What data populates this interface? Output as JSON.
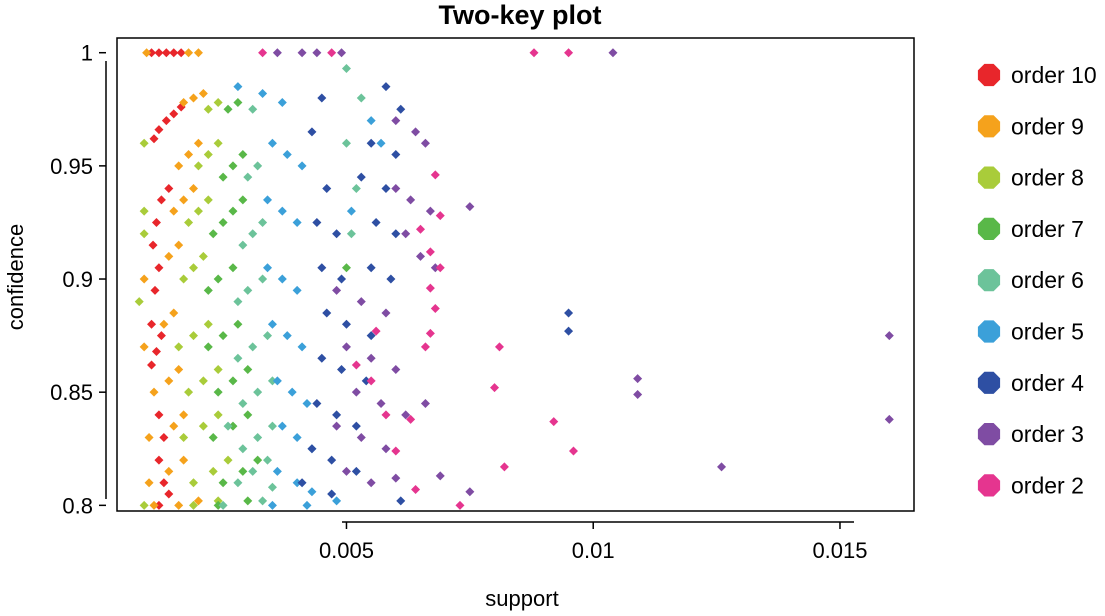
{
  "chart_data": {
    "type": "scatter",
    "title": "Two-key plot",
    "xlabel": "support",
    "ylabel": "confidence",
    "xlim": [
      0.00035,
      0.0165
    ],
    "ylim": [
      0.7975,
      1.0065
    ],
    "x_ticks": [
      {
        "value": 0.005,
        "label": "0.005"
      },
      {
        "value": 0.01,
        "label": "0.01"
      },
      {
        "value": 0.015,
        "label": "0.015"
      }
    ],
    "y_ticks": [
      {
        "value": 0.8,
        "label": "0.8"
      },
      {
        "value": 0.85,
        "label": "0.85"
      },
      {
        "value": 0.9,
        "label": "0.9"
      },
      {
        "value": 0.95,
        "label": "0.95"
      },
      {
        "value": 1.0,
        "label": "1"
      }
    ],
    "legend_position": "right",
    "series": [
      {
        "name": "order 10",
        "color": "#e8262b",
        "order": 10,
        "points": [
          [
            0.00105,
            1.0
          ],
          [
            0.0012,
            1.0
          ],
          [
            0.00135,
            1.0
          ],
          [
            0.0015,
            1.0
          ],
          [
            0.00165,
            1.0
          ],
          [
            0.0011,
            0.962
          ],
          [
            0.0012,
            0.966
          ],
          [
            0.00135,
            0.97
          ],
          [
            0.0015,
            0.973
          ],
          [
            0.00165,
            0.976
          ],
          [
            0.00108,
            0.915
          ],
          [
            0.00115,
            0.925
          ],
          [
            0.00125,
            0.935
          ],
          [
            0.0014,
            0.94
          ],
          [
            0.00105,
            0.88
          ],
          [
            0.00112,
            0.895
          ],
          [
            0.0012,
            0.905
          ],
          [
            0.00105,
            0.862
          ],
          [
            0.00115,
            0.868
          ],
          [
            0.00125,
            0.875
          ],
          [
            0.0012,
            0.84
          ],
          [
            0.0013,
            0.83
          ],
          [
            0.0012,
            0.82
          ],
          [
            0.0013,
            0.81
          ],
          [
            0.0012,
            0.8
          ],
          [
            0.0014,
            0.805
          ]
        ]
      },
      {
        "name": "order 9",
        "color": "#f5a21c",
        "order": 9,
        "points": [
          [
            0.00095,
            1.0
          ],
          [
            0.0018,
            1.0
          ],
          [
            0.002,
            1.0
          ],
          [
            0.0017,
            0.978
          ],
          [
            0.0019,
            0.98
          ],
          [
            0.0021,
            0.982
          ],
          [
            0.0016,
            0.95
          ],
          [
            0.0018,
            0.955
          ],
          [
            0.002,
            0.96
          ],
          [
            0.0015,
            0.93
          ],
          [
            0.0017,
            0.935
          ],
          [
            0.0019,
            0.94
          ],
          [
            0.0009,
            0.9
          ],
          [
            0.0014,
            0.91
          ],
          [
            0.0016,
            0.915
          ],
          [
            0.0009,
            0.87
          ],
          [
            0.0013,
            0.88
          ],
          [
            0.0015,
            0.885
          ],
          [
            0.0011,
            0.85
          ],
          [
            0.0014,
            0.855
          ],
          [
            0.0016,
            0.86
          ],
          [
            0.001,
            0.83
          ],
          [
            0.0015,
            0.835
          ],
          [
            0.0017,
            0.84
          ],
          [
            0.001,
            0.81
          ],
          [
            0.0014,
            0.815
          ],
          [
            0.0017,
            0.82
          ],
          [
            0.0011,
            0.8
          ],
          [
            0.0016,
            0.8
          ],
          [
            0.002,
            0.802
          ]
        ]
      },
      {
        "name": "order 8",
        "color": "#a9cc3a",
        "order": 8,
        "points": [
          [
            0.0009,
            0.96
          ],
          [
            0.0009,
            0.93
          ],
          [
            0.0009,
            0.92
          ],
          [
            0.0022,
            0.975
          ],
          [
            0.0024,
            0.978
          ],
          [
            0.002,
            0.95
          ],
          [
            0.0022,
            0.955
          ],
          [
            0.0024,
            0.96
          ],
          [
            0.0018,
            0.925
          ],
          [
            0.002,
            0.93
          ],
          [
            0.0022,
            0.935
          ],
          [
            0.0008,
            0.89
          ],
          [
            0.0017,
            0.9
          ],
          [
            0.0019,
            0.905
          ],
          [
            0.0021,
            0.91
          ],
          [
            0.0016,
            0.87
          ],
          [
            0.0019,
            0.875
          ],
          [
            0.0022,
            0.88
          ],
          [
            0.0018,
            0.85
          ],
          [
            0.0021,
            0.855
          ],
          [
            0.0024,
            0.86
          ],
          [
            0.0017,
            0.83
          ],
          [
            0.0021,
            0.835
          ],
          [
            0.0024,
            0.84
          ],
          [
            0.0019,
            0.81
          ],
          [
            0.0023,
            0.815
          ],
          [
            0.0026,
            0.82
          ],
          [
            0.0009,
            0.8
          ],
          [
            0.0019,
            0.8
          ],
          [
            0.0024,
            0.802
          ]
        ]
      },
      {
        "name": "order 7",
        "color": "#59b848",
        "order": 7,
        "points": [
          [
            0.0026,
            0.975
          ],
          [
            0.0028,
            0.978
          ],
          [
            0.0025,
            0.945
          ],
          [
            0.0027,
            0.95
          ],
          [
            0.0029,
            0.955
          ],
          [
            0.0023,
            0.92
          ],
          [
            0.0025,
            0.925
          ],
          [
            0.0027,
            0.93
          ],
          [
            0.0029,
            0.935
          ],
          [
            0.0022,
            0.895
          ],
          [
            0.0024,
            0.9
          ],
          [
            0.0027,
            0.905
          ],
          [
            0.0022,
            0.87
          ],
          [
            0.0025,
            0.875
          ],
          [
            0.0028,
            0.88
          ],
          [
            0.0024,
            0.85
          ],
          [
            0.0027,
            0.855
          ],
          [
            0.003,
            0.86
          ],
          [
            0.0023,
            0.83
          ],
          [
            0.0027,
            0.835
          ],
          [
            0.003,
            0.84
          ],
          [
            0.0025,
            0.81
          ],
          [
            0.0029,
            0.815
          ],
          [
            0.0032,
            0.82
          ],
          [
            0.0024,
            0.8
          ],
          [
            0.003,
            0.802
          ],
          [
            0.005,
            0.905
          ]
        ]
      },
      {
        "name": "order 6",
        "color": "#6cc39a",
        "order": 6,
        "points": [
          [
            0.0031,
            0.975
          ],
          [
            0.005,
            0.993
          ],
          [
            0.0053,
            0.98
          ],
          [
            0.003,
            0.945
          ],
          [
            0.0032,
            0.95
          ],
          [
            0.005,
            0.96
          ],
          [
            0.0052,
            0.94
          ],
          [
            0.0029,
            0.915
          ],
          [
            0.0031,
            0.92
          ],
          [
            0.0033,
            0.925
          ],
          [
            0.0051,
            0.92
          ],
          [
            0.0028,
            0.89
          ],
          [
            0.003,
            0.895
          ],
          [
            0.0033,
            0.9
          ],
          [
            0.0028,
            0.865
          ],
          [
            0.0031,
            0.87
          ],
          [
            0.0034,
            0.875
          ],
          [
            0.0029,
            0.845
          ],
          [
            0.0032,
            0.85
          ],
          [
            0.0035,
            0.855
          ],
          [
            0.0026,
            0.835
          ],
          [
            0.0029,
            0.825
          ],
          [
            0.0032,
            0.83
          ],
          [
            0.0035,
            0.835
          ],
          [
            0.0028,
            0.81
          ],
          [
            0.0031,
            0.815
          ],
          [
            0.0034,
            0.82
          ],
          [
            0.0025,
            0.8
          ],
          [
            0.0033,
            0.802
          ],
          [
            0.0035,
            0.808
          ]
        ]
      },
      {
        "name": "order 5",
        "color": "#3ba0d9",
        "order": 5,
        "points": [
          [
            0.0028,
            0.985
          ],
          [
            0.0033,
            0.982
          ],
          [
            0.0037,
            0.978
          ],
          [
            0.0035,
            0.96
          ],
          [
            0.0038,
            0.955
          ],
          [
            0.0041,
            0.95
          ],
          [
            0.0034,
            0.935
          ],
          [
            0.0037,
            0.93
          ],
          [
            0.004,
            0.925
          ],
          [
            0.0051,
            0.93
          ],
          [
            0.0034,
            0.905
          ],
          [
            0.0037,
            0.9
          ],
          [
            0.004,
            0.895
          ],
          [
            0.0035,
            0.88
          ],
          [
            0.0038,
            0.875
          ],
          [
            0.0041,
            0.87
          ],
          [
            0.0036,
            0.855
          ],
          [
            0.0039,
            0.85
          ],
          [
            0.0042,
            0.845
          ],
          [
            0.0037,
            0.835
          ],
          [
            0.004,
            0.83
          ],
          [
            0.0043,
            0.825
          ],
          [
            0.0036,
            0.815
          ],
          [
            0.004,
            0.81
          ],
          [
            0.0043,
            0.806
          ],
          [
            0.0035,
            0.8
          ],
          [
            0.0042,
            0.8
          ],
          [
            0.0048,
            0.802
          ],
          [
            0.0057,
            0.96
          ],
          [
            0.0055,
            0.97
          ]
        ]
      },
      {
        "name": "order 4",
        "color": "#2e4fa3",
        "order": 4,
        "points": [
          [
            0.0045,
            0.98
          ],
          [
            0.0058,
            0.985
          ],
          [
            0.0061,
            0.975
          ],
          [
            0.0043,
            0.965
          ],
          [
            0.0055,
            0.96
          ],
          [
            0.006,
            0.955
          ],
          [
            0.0046,
            0.94
          ],
          [
            0.0053,
            0.945
          ],
          [
            0.0058,
            0.94
          ],
          [
            0.0044,
            0.925
          ],
          [
            0.0048,
            0.92
          ],
          [
            0.0056,
            0.925
          ],
          [
            0.006,
            0.92
          ],
          [
            0.0045,
            0.905
          ],
          [
            0.0049,
            0.9
          ],
          [
            0.0055,
            0.905
          ],
          [
            0.0059,
            0.9
          ],
          [
            0.0046,
            0.885
          ],
          [
            0.005,
            0.88
          ],
          [
            0.0055,
            0.875
          ],
          [
            0.0045,
            0.865
          ],
          [
            0.0049,
            0.86
          ],
          [
            0.0054,
            0.855
          ],
          [
            0.0044,
            0.845
          ],
          [
            0.0048,
            0.84
          ],
          [
            0.0052,
            0.835
          ],
          [
            0.0043,
            0.825
          ],
          [
            0.0047,
            0.82
          ],
          [
            0.0052,
            0.815
          ],
          [
            0.0041,
            0.81
          ],
          [
            0.0047,
            0.805
          ],
          [
            0.0061,
            0.802
          ],
          [
            0.0095,
            0.885
          ],
          [
            0.0095,
            0.877
          ]
        ]
      },
      {
        "name": "order 3",
        "color": "#7f4ca3",
        "order": 3,
        "points": [
          [
            0.0036,
            1.0
          ],
          [
            0.0041,
            1.0
          ],
          [
            0.0044,
            1.0
          ],
          [
            0.0049,
            1.0
          ],
          [
            0.0104,
            1.0
          ],
          [
            0.006,
            0.97
          ],
          [
            0.0064,
            0.965
          ],
          [
            0.0066,
            0.96
          ],
          [
            0.006,
            0.94
          ],
          [
            0.0063,
            0.935
          ],
          [
            0.0067,
            0.93
          ],
          [
            0.0075,
            0.932
          ],
          [
            0.0062,
            0.92
          ],
          [
            0.0065,
            0.91
          ],
          [
            0.0068,
            0.905
          ],
          [
            0.0048,
            0.895
          ],
          [
            0.0053,
            0.89
          ],
          [
            0.0058,
            0.885
          ],
          [
            0.005,
            0.87
          ],
          [
            0.0055,
            0.865
          ],
          [
            0.006,
            0.86
          ],
          [
            0.0052,
            0.85
          ],
          [
            0.0057,
            0.845
          ],
          [
            0.0062,
            0.84
          ],
          [
            0.0066,
            0.845
          ],
          [
            0.0048,
            0.835
          ],
          [
            0.0053,
            0.83
          ],
          [
            0.0058,
            0.825
          ],
          [
            0.005,
            0.815
          ],
          [
            0.0055,
            0.81
          ],
          [
            0.006,
            0.812
          ],
          [
            0.0069,
            0.813
          ],
          [
            0.0075,
            0.806
          ],
          [
            0.0109,
            0.856
          ],
          [
            0.0109,
            0.849
          ],
          [
            0.0126,
            0.817
          ],
          [
            0.016,
            0.875
          ],
          [
            0.016,
            0.838
          ]
        ]
      },
      {
        "name": "order 2",
        "color": "#e5358f",
        "order": 2,
        "points": [
          [
            0.0033,
            1.0
          ],
          [
            0.0047,
            1.0
          ],
          [
            0.0088,
            1.0
          ],
          [
            0.0095,
            1.0
          ],
          [
            0.0068,
            0.946
          ],
          [
            0.0069,
            0.928
          ],
          [
            0.0065,
            0.922
          ],
          [
            0.0067,
            0.912
          ],
          [
            0.0069,
            0.905
          ],
          [
            0.0067,
            0.896
          ],
          [
            0.0068,
            0.887
          ],
          [
            0.0056,
            0.877
          ],
          [
            0.0067,
            0.876
          ],
          [
            0.0081,
            0.87
          ],
          [
            0.0066,
            0.87
          ],
          [
            0.0052,
            0.862
          ],
          [
            0.0055,
            0.855
          ],
          [
            0.008,
            0.852
          ],
          [
            0.0058,
            0.84
          ],
          [
            0.0063,
            0.838
          ],
          [
            0.0092,
            0.837
          ],
          [
            0.0096,
            0.824
          ],
          [
            0.006,
            0.824
          ],
          [
            0.0082,
            0.817
          ],
          [
            0.0064,
            0.807
          ],
          [
            0.0073,
            0.8
          ]
        ]
      }
    ]
  }
}
